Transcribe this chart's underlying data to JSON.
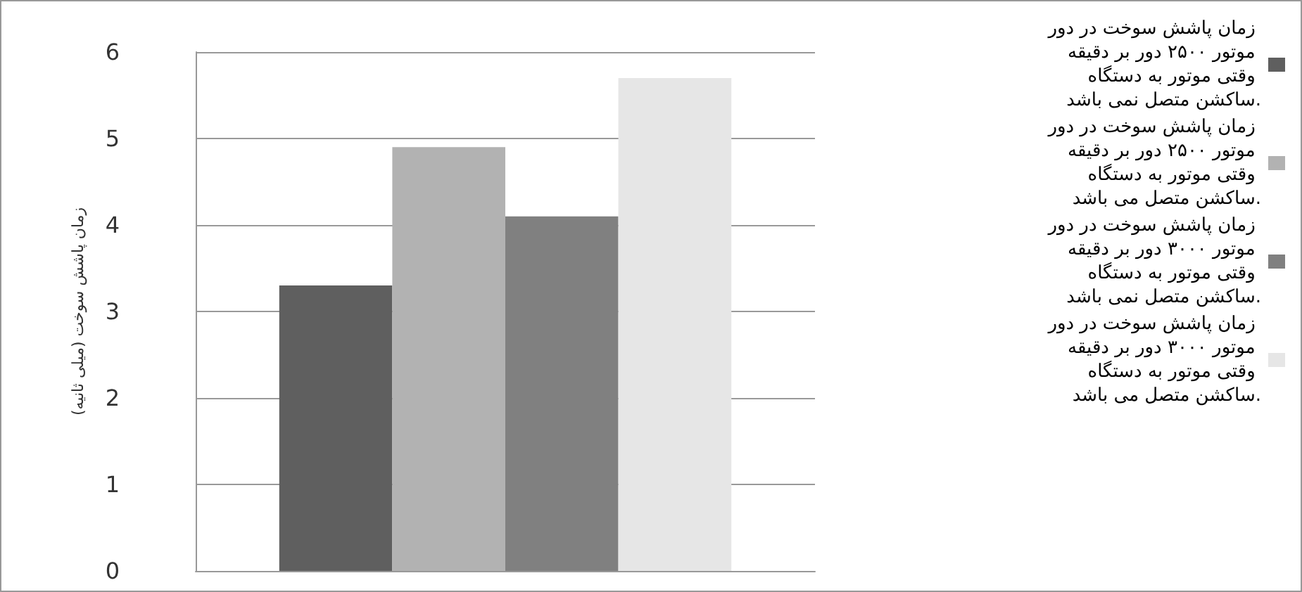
{
  "chart_data": {
    "type": "bar",
    "ylabel": "زمان پاشش سوخت (میلی ثانیه)",
    "categories": [
      null
    ],
    "series": [
      {
        "name": "زمان پاشش سوخت در دور موتور ۲۵۰۰ دور بر دقیقه وقتی موتور به دستگاه ساکشن متصل نمی باشد.",
        "color": "#5f5f5f",
        "values": [
          3.3
        ]
      },
      {
        "name": "زمان پاشش سوخت در دور موتور ۲۵۰۰ دور بر دقیقه وقتی موتور به دستگاه ساکشن متصل می باشد.",
        "color": "#b2b2b2",
        "values": [
          4.9
        ]
      },
      {
        "name": "زمان پاشش سوخت در دور موتور ۳۰۰۰ دور بر دقیقه وقتی موتور به دستگاه ساکشن متصل نمی باشد.",
        "color": "#808080",
        "values": [
          4.1
        ]
      },
      {
        "name": "زمان پاشش سوخت در دور موتور ۳۰۰۰ دور بر دقیقه وقتی موتور به دستگاه ساکشن متصل می باشد.",
        "color": "#e6e6e6",
        "values": [
          5.7
        ]
      }
    ],
    "ylim": [
      0,
      6
    ],
    "yticks": [
      0,
      1,
      2,
      3,
      4,
      5,
      6
    ],
    "grid": "y",
    "legend": "right"
  }
}
